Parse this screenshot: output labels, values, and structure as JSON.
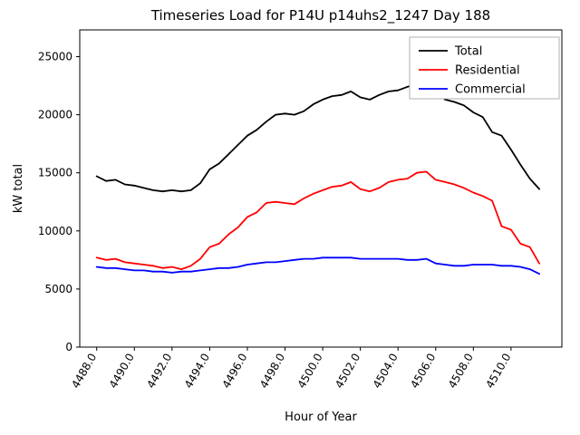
{
  "chart_data": {
    "type": "line",
    "title": "Timeseries Load for P14U p14uhs2_1247  Day 188",
    "xlabel": "Hour of Year",
    "ylabel": "kW total",
    "xlim": [
      4487.1,
      4512.7
    ],
    "ylim": [
      0,
      27300
    ],
    "grid": false,
    "legend_position": "upper right",
    "x_ticks": [
      4488,
      4490,
      4492,
      4494,
      4496,
      4498,
      4500,
      4502,
      4504,
      4506,
      4508,
      4510
    ],
    "x_tick_labels": [
      "4488.0",
      "4490.0",
      "4492.0",
      "4494.0",
      "4496.0",
      "4498.0",
      "4500.0",
      "4502.0",
      "4504.0",
      "4506.0",
      "4508.0",
      "4510.0"
    ],
    "y_ticks": [
      0,
      5000,
      10000,
      15000,
      20000,
      25000
    ],
    "y_tick_labels": [
      "0",
      "5000",
      "10000",
      "15000",
      "20000",
      "25000"
    ],
    "x": [
      4488.0,
      4488.5,
      4489.0,
      4489.5,
      4490.0,
      4490.5,
      4491.0,
      4491.5,
      4492.0,
      4492.5,
      4493.0,
      4493.5,
      4494.0,
      4494.5,
      4495.0,
      4495.5,
      4496.0,
      4496.5,
      4497.0,
      4497.5,
      4498.0,
      4498.5,
      4499.0,
      4499.5,
      4500.0,
      4500.5,
      4501.0,
      4501.5,
      4502.0,
      4502.5,
      4503.0,
      4503.5,
      4504.0,
      4504.5,
      4505.0,
      4505.5,
      4506.0,
      4506.5,
      4507.0,
      4507.5,
      4508.0,
      4508.5,
      4509.0,
      4509.5,
      4510.0,
      4510.5,
      4511.0,
      4511.5
    ],
    "series": [
      {
        "name": "Total",
        "color": "#000000",
        "values": [
          14700,
          14300,
          14400,
          14000,
          13900,
          13700,
          13500,
          13400,
          13500,
          13400,
          13500,
          14100,
          15300,
          15800,
          16600,
          17400,
          18200,
          18700,
          19400,
          20000,
          20100,
          20000,
          20300,
          20900,
          21300,
          21600,
          21700,
          22000,
          21500,
          21300,
          21700,
          22000,
          22100,
          22400,
          22600,
          22500,
          21900,
          21300,
          21100,
          20800,
          20200,
          19800,
          18500,
          18200,
          17000,
          15700,
          14500,
          13600
        ]
      },
      {
        "name": "Residential",
        "color": "#ff0000",
        "values": [
          7700,
          7500,
          7600,
          7300,
          7200,
          7100,
          7000,
          6800,
          6900,
          6700,
          7000,
          7600,
          8600,
          8900,
          9700,
          10300,
          11200,
          11600,
          12400,
          12500,
          12400,
          12300,
          12800,
          13200,
          13500,
          13800,
          13900,
          14200,
          13600,
          13400,
          13700,
          14200,
          14400,
          14500,
          15000,
          15100,
          14400,
          14200,
          14000,
          13700,
          13300,
          13000,
          12600,
          10400,
          10100,
          8900,
          8600,
          7200
        ]
      },
      {
        "name": "Commercial",
        "color": "#0000ff",
        "values": [
          6900,
          6800,
          6800,
          6700,
          6600,
          6600,
          6500,
          6500,
          6400,
          6500,
          6500,
          6600,
          6700,
          6800,
          6800,
          6900,
          7100,
          7200,
          7300,
          7300,
          7400,
          7500,
          7600,
          7600,
          7700,
          7700,
          7700,
          7700,
          7600,
          7600,
          7600,
          7600,
          7600,
          7500,
          7500,
          7600,
          7200,
          7100,
          7000,
          7000,
          7100,
          7100,
          7100,
          7000,
          7000,
          6900,
          6700,
          6300
        ]
      }
    ],
    "legend_entries": [
      "Total",
      "Residential",
      "Commercial"
    ]
  }
}
